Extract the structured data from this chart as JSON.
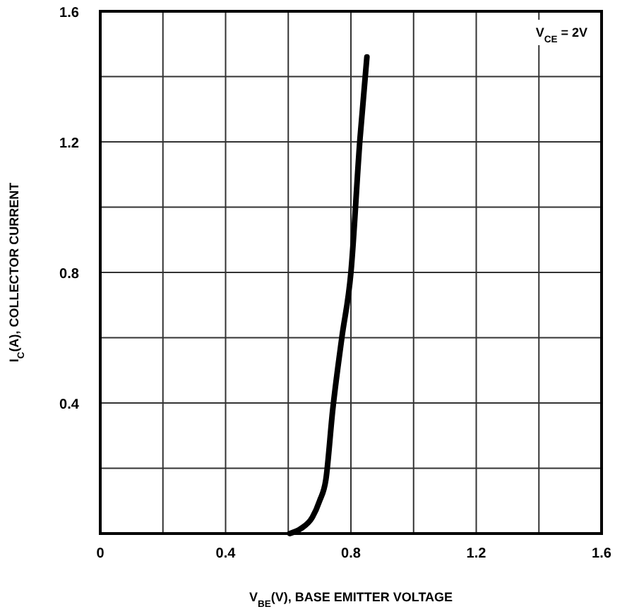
{
  "chart_data": {
    "type": "line",
    "xlabel": "V$_{BE}$(V), BASE EMITTER VOLTAGE",
    "ylabel": "I$_{C}$(A), COLLECTOR CURRENT",
    "annotations": [
      "V$_{CE}$ = 2V"
    ],
    "x": [
      0.605,
      0.64,
      0.677,
      0.7,
      0.72,
      0.742,
      0.771,
      0.8,
      0.829,
      0.851
    ],
    "series": [
      {
        "color": "#000000",
        "values": [
          0,
          0.015,
          0.05,
          0.1,
          0.165,
          0.38,
          0.6,
          0.8,
          1.21,
          1.46
        ]
      }
    ],
    "xlim": [
      0,
      1.6
    ],
    "ylim": [
      0,
      1.6
    ],
    "xticks": [
      0,
      {
        "value": 0.2,
        "label": null
      },
      0.4,
      {
        "value": 0.6,
        "label": null
      },
      0.8,
      {
        "value": 1.0,
        "label": null
      },
      1.2,
      {
        "value": 1.4,
        "label": null
      },
      1.6
    ],
    "yticks": [
      {
        "value": 0,
        "label": null
      },
      {
        "value": 0.2,
        "label": null
      },
      0.4,
      {
        "value": 0.6,
        "label": null
      },
      0.8,
      {
        "value": 1.0,
        "label": null
      },
      1.2,
      {
        "value": 1.4,
        "label": null
      },
      1.6
    ],
    "grid": true,
    "marker": "none",
    "line_style": "solid"
  }
}
